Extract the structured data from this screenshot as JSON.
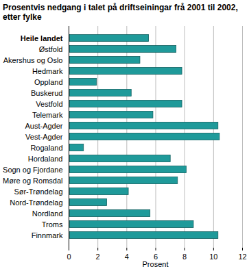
{
  "chart_data": {
    "type": "bar",
    "orientation": "horizontal",
    "title": "Prosentvis nedgang i talet på driftseiningar frå 2001 til 2002, etter fylke",
    "x_label": "Prosent",
    "categories": [
      "Heile landet",
      "Østfold",
      "Akershus og Oslo",
      "Hedmark",
      "Oppland",
      "Buskerud",
      "Vestfold",
      "Telemark",
      "Aust-Agder",
      "Vest-Agder",
      "Rogaland",
      "Hordaland",
      "Sogn og Fjordane",
      "Møre og Romsdal",
      "Sør-Trøndelag",
      "Nord-Trøndelag",
      "Nordland",
      "Troms",
      "Finnmark"
    ],
    "values": [
      5.6,
      7.5,
      5.0,
      7.9,
      2.0,
      4.4,
      7.9,
      5.9,
      10.4,
      10.5,
      1.1,
      7.1,
      8.2,
      7.6,
      4.2,
      2.7,
      5.7,
      8.7,
      10.4
    ],
    "color": "#1f9a9a",
    "xlim": [
      0,
      12
    ],
    "xticks": [
      0,
      2,
      4,
      6,
      8,
      10,
      12
    ],
    "grid": true
  }
}
